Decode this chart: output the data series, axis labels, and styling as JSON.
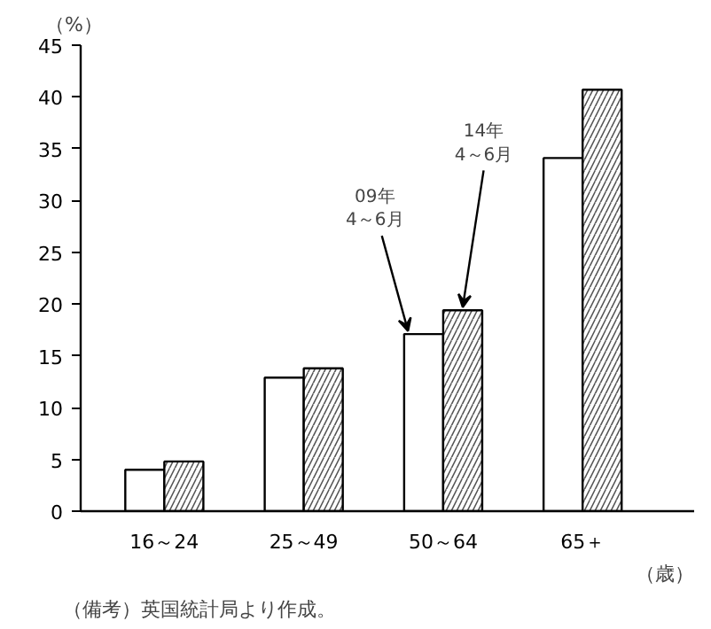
{
  "chart_data": {
    "type": "bar",
    "categories": [
      "16～24",
      "25～49",
      "50～64",
      "65＋"
    ],
    "series": [
      {
        "name": "09年\n4～6月",
        "color": "#ffffff",
        "values": [
          4.0,
          12.9,
          17.1,
          34.1
        ]
      },
      {
        "name": "14年\n4～6月",
        "color": "#ffffff",
        "values": [
          4.8,
          13.8,
          19.4,
          40.7
        ]
      }
    ],
    "ylim": [
      0,
      45
    ],
    "yticks": [
      0,
      5,
      10,
      15,
      20,
      25,
      30,
      35,
      40,
      45
    ],
    "grid": false,
    "xlabel": "（歳）",
    "ylabel": "（%）",
    "annotations": [
      "（備考）英国統計局より作成。"
    ]
  }
}
